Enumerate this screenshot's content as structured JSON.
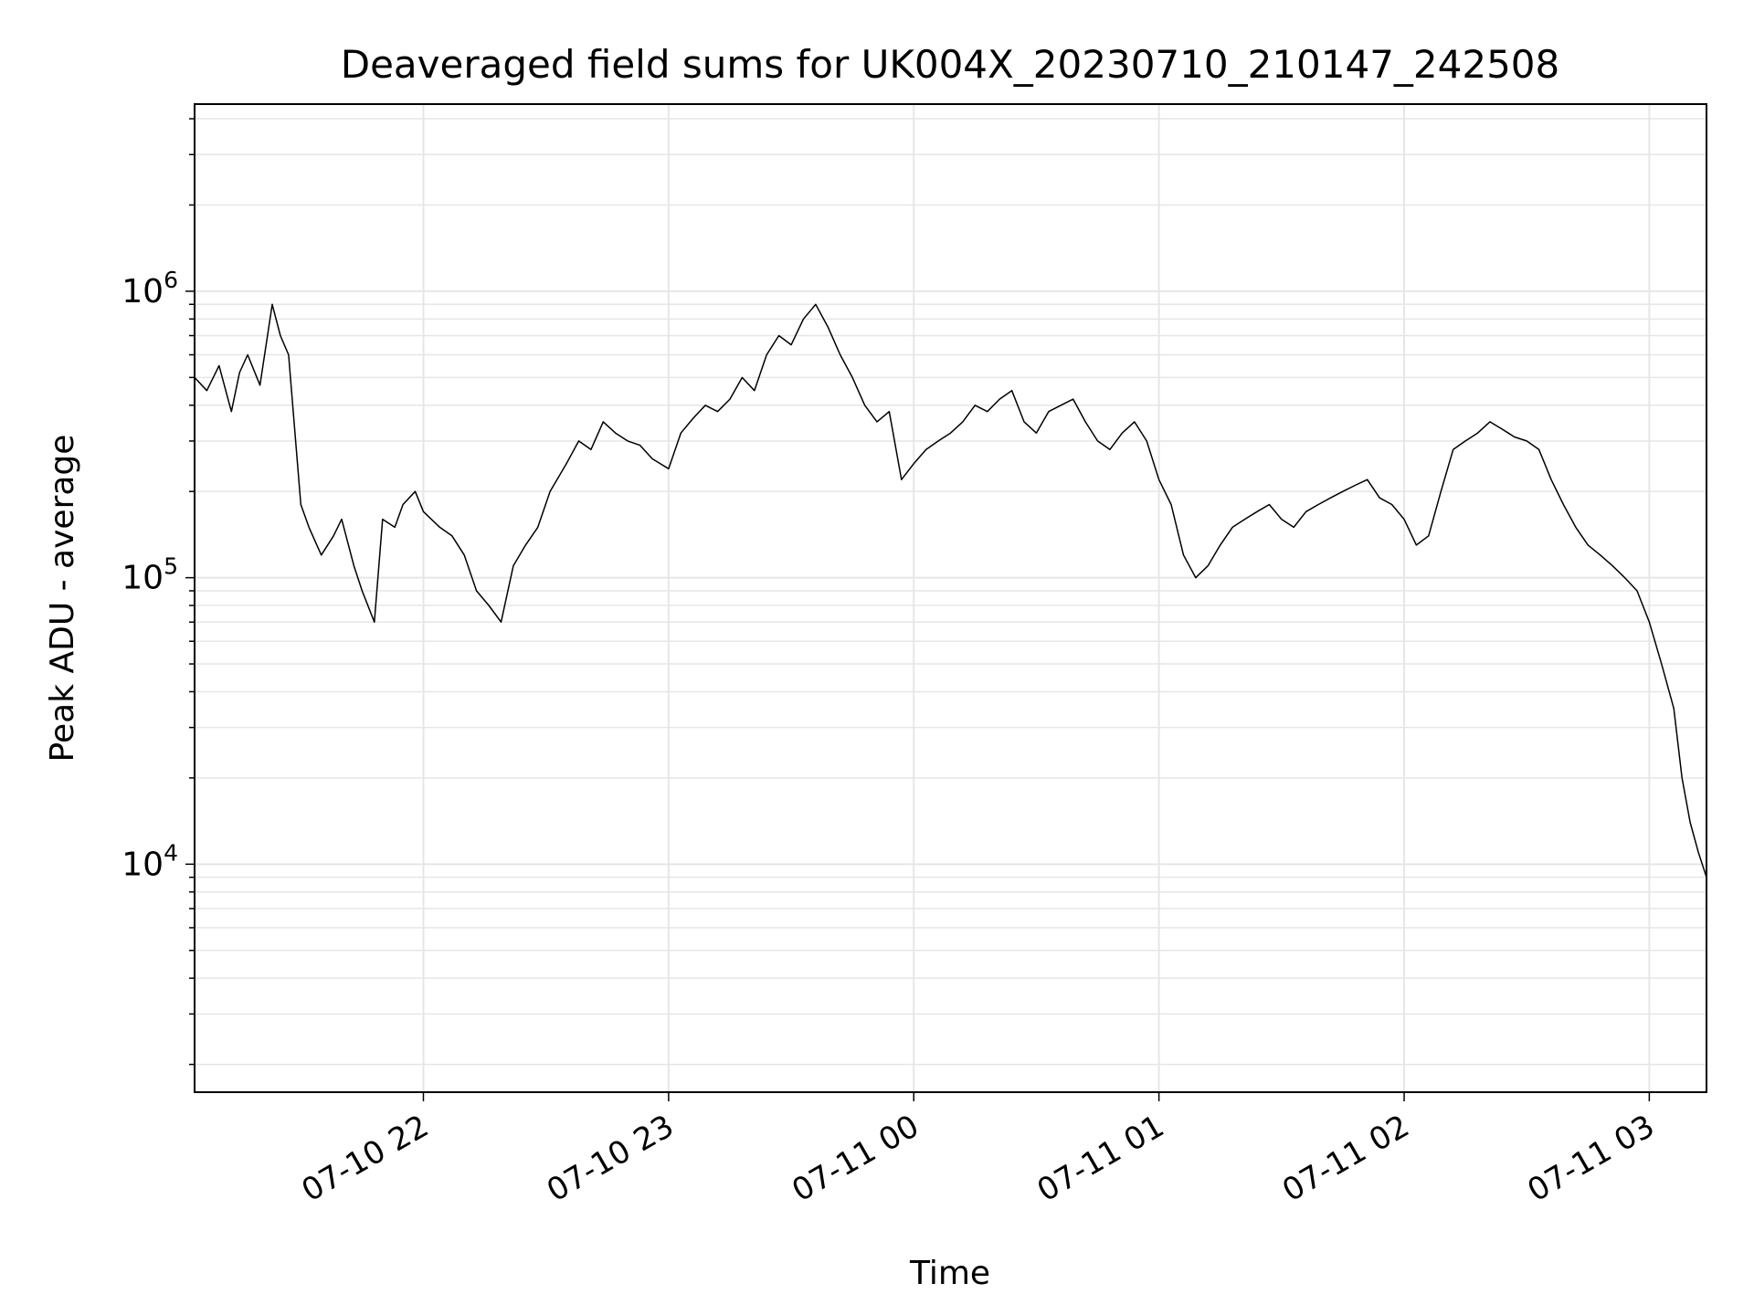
{
  "chart_data": {
    "type": "line",
    "title": "Deaveraged field sums for UK004X_20230710_210147_242508",
    "xlabel": "Time",
    "ylabel": "Peak ADU - average",
    "yscale": "log",
    "ylim": [
      1600,
      4500000
    ],
    "xlim": [
      "2023-07-10 21:04",
      "2023-07-11 03:14"
    ],
    "x_ticks": [
      "2023-07-10 22:00",
      "2023-07-10 23:00",
      "2023-07-11 00:00",
      "2023-07-11 01:00",
      "2023-07-11 02:00",
      "2023-07-11 03:00"
    ],
    "x_tick_labels": [
      "07-10 22",
      "07-10 23",
      "07-11 00",
      "07-11 01",
      "07-11 02",
      "07-11 03"
    ],
    "y_tick_labels": [
      {
        "value": 10000,
        "base": "10",
        "exp": "4"
      },
      {
        "value": 100000,
        "base": "10",
        "exp": "5"
      },
      {
        "value": 1000000,
        "base": "10",
        "exp": "6"
      }
    ],
    "grid": true,
    "line_color": "#000000",
    "grid_color": "#e6e6e6",
    "series": [
      {
        "x": [
          "2023-07-10 21:04",
          "2023-07-10 21:07",
          "2023-07-10 21:10",
          "2023-07-10 21:13",
          "2023-07-10 21:15",
          "2023-07-10 21:17",
          "2023-07-10 21:20",
          "2023-07-10 21:23",
          "2023-07-10 21:25",
          "2023-07-10 21:27",
          "2023-07-10 21:30",
          "2023-07-10 21:32",
          "2023-07-10 21:35",
          "2023-07-10 21:38",
          "2023-07-10 21:40",
          "2023-07-10 21:43",
          "2023-07-10 21:45",
          "2023-07-10 21:48",
          "2023-07-10 21:50",
          "2023-07-10 21:53",
          "2023-07-10 21:55",
          "2023-07-10 21:58",
          "2023-07-10 22:00",
          "2023-07-10 22:04",
          "2023-07-10 22:07",
          "2023-07-10 22:10",
          "2023-07-10 22:13",
          "2023-07-10 22:16",
          "2023-07-10 22:19",
          "2023-07-10 22:22",
          "2023-07-10 22:25",
          "2023-07-10 22:28",
          "2023-07-10 22:31",
          "2023-07-10 22:35",
          "2023-07-10 22:38",
          "2023-07-10 22:41",
          "2023-07-10 22:44",
          "2023-07-10 22:47",
          "2023-07-10 22:50",
          "2023-07-10 22:53",
          "2023-07-10 22:56",
          "2023-07-10 23:00",
          "2023-07-10 23:03",
          "2023-07-10 23:06",
          "2023-07-10 23:09",
          "2023-07-10 23:12",
          "2023-07-10 23:15",
          "2023-07-10 23:18",
          "2023-07-10 23:21",
          "2023-07-10 23:24",
          "2023-07-10 23:27",
          "2023-07-10 23:30",
          "2023-07-10 23:33",
          "2023-07-10 23:36",
          "2023-07-10 23:39",
          "2023-07-10 23:42",
          "2023-07-10 23:45",
          "2023-07-10 23:48",
          "2023-07-10 23:51",
          "2023-07-10 23:54",
          "2023-07-10 23:57",
          "2023-07-11 00:00",
          "2023-07-11 00:03",
          "2023-07-11 00:06",
          "2023-07-11 00:09",
          "2023-07-11 00:12",
          "2023-07-11 00:15",
          "2023-07-11 00:18",
          "2023-07-11 00:21",
          "2023-07-11 00:24",
          "2023-07-11 00:27",
          "2023-07-11 00:30",
          "2023-07-11 00:33",
          "2023-07-11 00:36",
          "2023-07-11 00:39",
          "2023-07-11 00:42",
          "2023-07-11 00:45",
          "2023-07-11 00:48",
          "2023-07-11 00:51",
          "2023-07-11 00:54",
          "2023-07-11 00:57",
          "2023-07-11 01:00",
          "2023-07-11 01:03",
          "2023-07-11 01:06",
          "2023-07-11 01:09",
          "2023-07-11 01:12",
          "2023-07-11 01:15",
          "2023-07-11 01:18",
          "2023-07-11 01:21",
          "2023-07-11 01:24",
          "2023-07-11 01:27",
          "2023-07-11 01:30",
          "2023-07-11 01:33",
          "2023-07-11 01:36",
          "2023-07-11 01:39",
          "2023-07-11 01:42",
          "2023-07-11 01:45",
          "2023-07-11 01:48",
          "2023-07-11 01:51",
          "2023-07-11 01:54",
          "2023-07-11 01:57",
          "2023-07-11 02:00",
          "2023-07-11 02:03",
          "2023-07-11 02:06",
          "2023-07-11 02:09",
          "2023-07-11 02:12",
          "2023-07-11 02:15",
          "2023-07-11 02:18",
          "2023-07-11 02:21",
          "2023-07-11 02:24",
          "2023-07-11 02:27",
          "2023-07-11 02:30",
          "2023-07-11 02:33",
          "2023-07-11 02:36",
          "2023-07-11 02:39",
          "2023-07-11 02:42",
          "2023-07-11 02:45",
          "2023-07-11 02:48",
          "2023-07-11 02:51",
          "2023-07-11 02:54",
          "2023-07-11 02:57",
          "2023-07-11 03:00",
          "2023-07-11 03:03",
          "2023-07-11 03:06",
          "2023-07-11 03:08",
          "2023-07-11 03:10",
          "2023-07-11 03:12",
          "2023-07-11 03:14"
        ],
        "y": [
          500000,
          450000,
          550000,
          380000,
          520000,
          600000,
          470000,
          900000,
          700000,
          600000,
          180000,
          150000,
          120000,
          140000,
          160000,
          110000,
          90000,
          70000,
          160000,
          150000,
          180000,
          200000,
          170000,
          150000,
          140000,
          120000,
          90000,
          80000,
          70000,
          110000,
          130000,
          150000,
          200000,
          250000,
          300000,
          280000,
          350000,
          320000,
          300000,
          290000,
          260000,
          240000,
          320000,
          360000,
          400000,
          380000,
          420000,
          500000,
          450000,
          600000,
          700000,
          650000,
          800000,
          900000,
          750000,
          600000,
          500000,
          400000,
          350000,
          380000,
          220000,
          250000,
          280000,
          300000,
          320000,
          350000,
          400000,
          380000,
          420000,
          450000,
          350000,
          320000,
          380000,
          400000,
          420000,
          350000,
          300000,
          280000,
          320000,
          350000,
          300000,
          220000,
          180000,
          120000,
          100000,
          110000,
          130000,
          150000,
          160000,
          170000,
          180000,
          160000,
          150000,
          170000,
          180000,
          190000,
          200000,
          210000,
          220000,
          190000,
          180000,
          160000,
          130000,
          140000,
          200000,
          280000,
          300000,
          320000,
          350000,
          330000,
          310000,
          300000,
          280000,
          220000,
          180000,
          150000,
          130000,
          120000,
          110000,
          100000,
          90000,
          70000,
          50000,
          35000,
          20000,
          14000,
          11000,
          9000
        ]
      }
    ]
  }
}
